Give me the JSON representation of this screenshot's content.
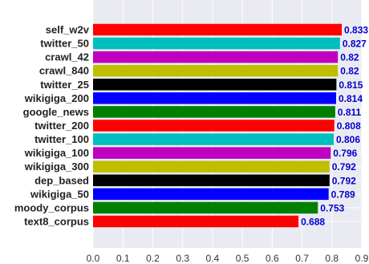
{
  "chart_data": {
    "type": "bar",
    "orientation": "horizontal",
    "categories": [
      "self_w2v",
      "twitter_50",
      "crawl_42",
      "crawl_840",
      "twitter_25",
      "wikigiga_200",
      "google_news",
      "twitter_200",
      "twitter_100",
      "wikigiga_100",
      "wikigiga_300",
      "dep_based",
      "wikigiga_50",
      "moody_corpus",
      "text8_corpus"
    ],
    "values": [
      0.833,
      0.827,
      0.82,
      0.82,
      0.815,
      0.814,
      0.811,
      0.808,
      0.806,
      0.796,
      0.792,
      0.792,
      0.789,
      0.753,
      0.688
    ],
    "value_labels": [
      "0.833",
      "0.827",
      "0.82",
      "0.82",
      "0.815",
      "0.814",
      "0.811",
      "0.808",
      "0.806",
      "0.796",
      "0.792",
      "0.792",
      "0.789",
      "0.753",
      "0.688"
    ],
    "bar_colors": [
      "#ff0000",
      "#00bfbf",
      "#bf00bf",
      "#bfbf00",
      "#000000",
      "#0000ff",
      "#008000",
      "#ff0000",
      "#00bfbf",
      "#bf00bf",
      "#bfbf00",
      "#000000",
      "#0000ff",
      "#008000",
      "#ff0000"
    ],
    "xlim": [
      0.0,
      0.9
    ],
    "xticks": [
      "0.0",
      "0.1",
      "0.2",
      "0.3",
      "0.4",
      "0.5",
      "0.6",
      "0.7",
      "0.8",
      "0.9"
    ],
    "title": "",
    "xlabel": "",
    "ylabel": "",
    "grid": true,
    "background_color": "#eaeaf2",
    "grid_color": "#ffffff",
    "value_label_color": "#0000cc"
  }
}
